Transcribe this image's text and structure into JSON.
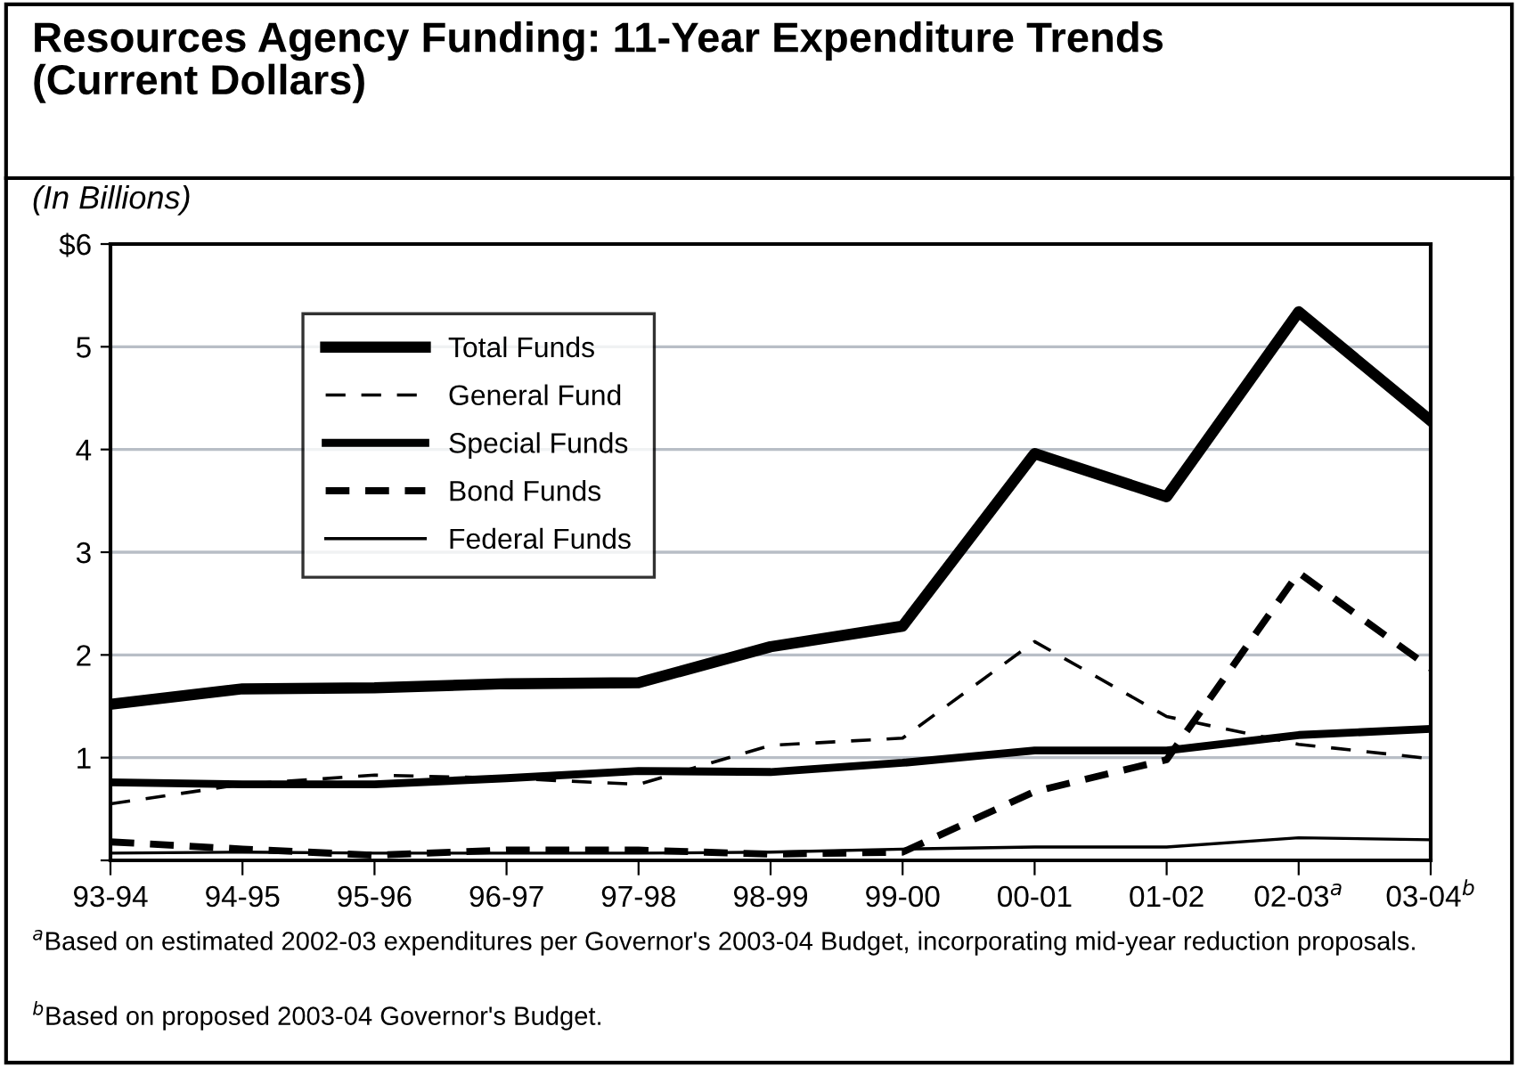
{
  "chart_data": {
    "type": "line",
    "title": "Resources Agency Funding: 11-Year Expenditure Trends\n(Current Dollars)",
    "subtitle": "(In Billions)",
    "categories": [
      "93-94",
      "94-95",
      "95-96",
      "96-97",
      "97-98",
      "98-99",
      "99-00",
      "00-01",
      "01-02",
      "02-03$^{a}$",
      "03-04$^{b}$"
    ],
    "series": [
      {
        "name": "Total Funds",
        "color": "#000000",
        "line_style": "solid",
        "values": [
          1.52,
          1.67,
          1.68,
          1.72,
          1.73,
          2.08,
          2.28,
          3.96,
          3.54,
          5.34,
          4.28
        ]
      },
      {
        "name": "General Fund",
        "color": "#000000",
        "line_style": "dashed",
        "values": [
          0.55,
          0.74,
          0.83,
          0.8,
          0.74,
          1.12,
          1.19,
          2.13,
          1.4,
          1.13,
          0.99
        ]
      },
      {
        "name": "Special Funds",
        "color": "#000000",
        "line_style": "solid",
        "values": [
          0.76,
          0.74,
          0.74,
          0.8,
          0.87,
          0.86,
          0.95,
          1.07,
          1.07,
          1.22,
          1.28
        ]
      },
      {
        "name": "Bond Funds",
        "color": "#000000",
        "line_style": "dashed",
        "values": [
          0.18,
          0.11,
          0.05,
          0.1,
          0.1,
          0.06,
          0.08,
          0.67,
          0.98,
          2.8,
          1.87
        ]
      },
      {
        "name": "Federal Funds",
        "color": "#000000",
        "line_style": "solid",
        "values": [
          0.07,
          0.08,
          0.07,
          0.07,
          0.07,
          0.08,
          0.11,
          0.13,
          0.13,
          0.22,
          0.2
        ]
      }
    ],
    "ylim": [
      0,
      6
    ],
    "yticks": [
      {
        "value": 0,
        "label": null
      },
      1,
      2,
      3,
      4,
      5,
      {
        "value": 6,
        "label": "$6"
      }
    ],
    "grid": "y",
    "legend": "top left",
    "marker": "none",
    "annotations": [
      "$^{a}$Based on estimated 2002-03 expenditures per Governor's 2003-04 Budget, incorporating mid-year reduction proposals.",
      "$^{b}$Based on proposed 2003-04 Governor's Budget."
    ]
  }
}
